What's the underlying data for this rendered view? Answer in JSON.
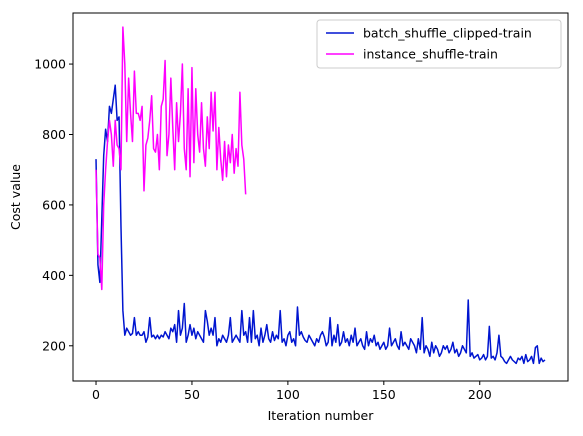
{
  "chart_data": {
    "type": "line",
    "title": "",
    "xlabel": "Iteration number",
    "ylabel": "Cost value",
    "xlim": [
      -12,
      246
    ],
    "ylim": [
      100,
      1145
    ],
    "xticks": [
      0,
      50,
      100,
      150,
      200
    ],
    "yticks": [
      200,
      400,
      600,
      800,
      1000
    ],
    "grid": false,
    "legend_position": "top-right",
    "series": [
      {
        "name": "batch_shuffle_clipped-train",
        "color": "#0015d0",
        "x": [
          0,
          1,
          2,
          3,
          4,
          5,
          6,
          7,
          8,
          9,
          10,
          11,
          12,
          13,
          14,
          15,
          16,
          17,
          18,
          19,
          20,
          21,
          22,
          23,
          24,
          25,
          26,
          27,
          28,
          29,
          30,
          31,
          32,
          33,
          34,
          35,
          36,
          37,
          38,
          39,
          40,
          41,
          42,
          43,
          44,
          45,
          46,
          47,
          48,
          49,
          50,
          51,
          52,
          53,
          54,
          55,
          56,
          57,
          58,
          59,
          60,
          61,
          62,
          63,
          64,
          65,
          66,
          67,
          68,
          69,
          70,
          71,
          72,
          73,
          74,
          75,
          76,
          77,
          78,
          79,
          80,
          81,
          82,
          83,
          84,
          85,
          86,
          87,
          88,
          89,
          90,
          91,
          92,
          93,
          94,
          95,
          96,
          97,
          98,
          99,
          100,
          101,
          102,
          103,
          104,
          105,
          106,
          107,
          108,
          109,
          110,
          111,
          112,
          113,
          114,
          115,
          116,
          117,
          118,
          119,
          120,
          121,
          122,
          123,
          124,
          125,
          126,
          127,
          128,
          129,
          130,
          131,
          132,
          133,
          134,
          135,
          136,
          137,
          138,
          139,
          140,
          141,
          142,
          143,
          144,
          145,
          146,
          147,
          148,
          149,
          150,
          151,
          152,
          153,
          154,
          155,
          156,
          157,
          158,
          159,
          160,
          161,
          162,
          163,
          164,
          165,
          166,
          167,
          168,
          169,
          170,
          171,
          172,
          173,
          174,
          175,
          176,
          177,
          178,
          179,
          180,
          181,
          182,
          183,
          184,
          185,
          186,
          187,
          188,
          189,
          190,
          191,
          192,
          193,
          194,
          195,
          196,
          197,
          198,
          199,
          200,
          201,
          202,
          203,
          204,
          205,
          206,
          207,
          208,
          209,
          210,
          211,
          212,
          213,
          214,
          215,
          216,
          217,
          218,
          219,
          220,
          221,
          222,
          223,
          224,
          225,
          226,
          227,
          228,
          229,
          230,
          231,
          232,
          233,
          234
        ],
        "y": [
          730,
          430,
          380,
          560,
          740,
          815,
          780,
          880,
          860,
          900,
          940,
          840,
          850,
          540,
          300,
          230,
          250,
          240,
          230,
          235,
          280,
          230,
          240,
          230,
          230,
          240,
          210,
          225,
          280,
          225,
          230,
          220,
          230,
          220,
          230,
          225,
          240,
          230,
          220,
          250,
          240,
          260,
          210,
          300,
          230,
          250,
          320,
          210,
          230,
          260,
          230,
          250,
          220,
          240,
          230,
          220,
          210,
          300,
          270,
          230,
          250,
          230,
          280,
          200,
          220,
          210,
          230,
          220,
          210,
          230,
          280,
          210,
          220,
          230,
          220,
          210,
          300,
          230,
          240,
          210,
          280,
          210,
          300,
          220,
          230,
          200,
          250,
          210,
          230,
          260,
          220,
          210,
          240,
          215,
          230,
          220,
          300,
          210,
          220,
          200,
          230,
          240,
          210,
          220,
          200,
          310,
          230,
          240,
          225,
          215,
          210,
          230,
          220,
          210,
          200,
          220,
          210,
          230,
          240,
          225,
          200,
          210,
          280,
          200,
          230,
          210,
          260,
          200,
          210,
          240,
          210,
          220,
          200,
          230,
          210,
          250,
          200,
          210,
          220,
          200,
          190,
          240,
          200,
          220,
          210,
          230,
          200,
          210,
          190,
          200,
          210,
          190,
          200,
          250,
          200,
          210,
          220,
          200,
          190,
          240,
          200,
          210,
          200,
          190,
          220,
          210,
          200,
          180,
          220,
          190,
          280,
          180,
          200,
          190,
          170,
          210,
          180,
          200,
          190,
          170,
          180,
          200,
          190,
          200,
          180,
          190,
          210,
          180,
          190,
          170,
          180,
          200,
          190,
          180,
          330,
          170,
          180,
          165,
          170,
          175,
          160,
          165,
          175,
          160,
          170,
          255,
          165,
          170,
          160,
          180,
          230,
          170,
          165,
          155,
          150,
          160,
          170,
          160,
          155,
          150,
          165,
          160,
          170,
          150,
          175,
          155,
          160,
          170,
          150,
          195,
          200,
          150,
          165,
          155,
          160
        ],
        "x_end": 234
      },
      {
        "name": "instance_shuffle-train",
        "color": "#ff00ff",
        "x": [
          0,
          1,
          2,
          3,
          4,
          5,
          6,
          7,
          8,
          9,
          10,
          11,
          12,
          13,
          14,
          15,
          16,
          17,
          18,
          19,
          20,
          21,
          22,
          23,
          24,
          25,
          26,
          27,
          28,
          29,
          30,
          31,
          32,
          33,
          34,
          35,
          36,
          37,
          38,
          39,
          40,
          41,
          42,
          43,
          44,
          45,
          46,
          47,
          48,
          49,
          50,
          51,
          52,
          53,
          54,
          55,
          56,
          57,
          58,
          59,
          60,
          61,
          62,
          63,
          64,
          65,
          66,
          67,
          68,
          69,
          70,
          71,
          72,
          73,
          74,
          75,
          76,
          77,
          78
        ],
        "y": [
          700,
          460,
          450,
          360,
          600,
          700,
          780,
          840,
          800,
          710,
          840,
          770,
          760,
          700,
          1105,
          1000,
          780,
          960,
          860,
          780,
          980,
          860,
          860,
          840,
          880,
          640,
          770,
          790,
          840,
          910,
          760,
          750,
          800,
          700,
          880,
          900,
          1010,
          740,
          800,
          960,
          820,
          700,
          890,
          780,
          860,
          1000,
          760,
          700,
          930,
          680,
          990,
          720,
          930,
          800,
          750,
          890,
          760,
          710,
          850,
          760,
          920,
          810,
          920,
          700,
          820,
          730,
          670,
          780,
          680,
          770,
          720,
          800,
          690,
          760,
          710,
          920,
          770,
          730,
          630
        ]
      }
    ]
  }
}
